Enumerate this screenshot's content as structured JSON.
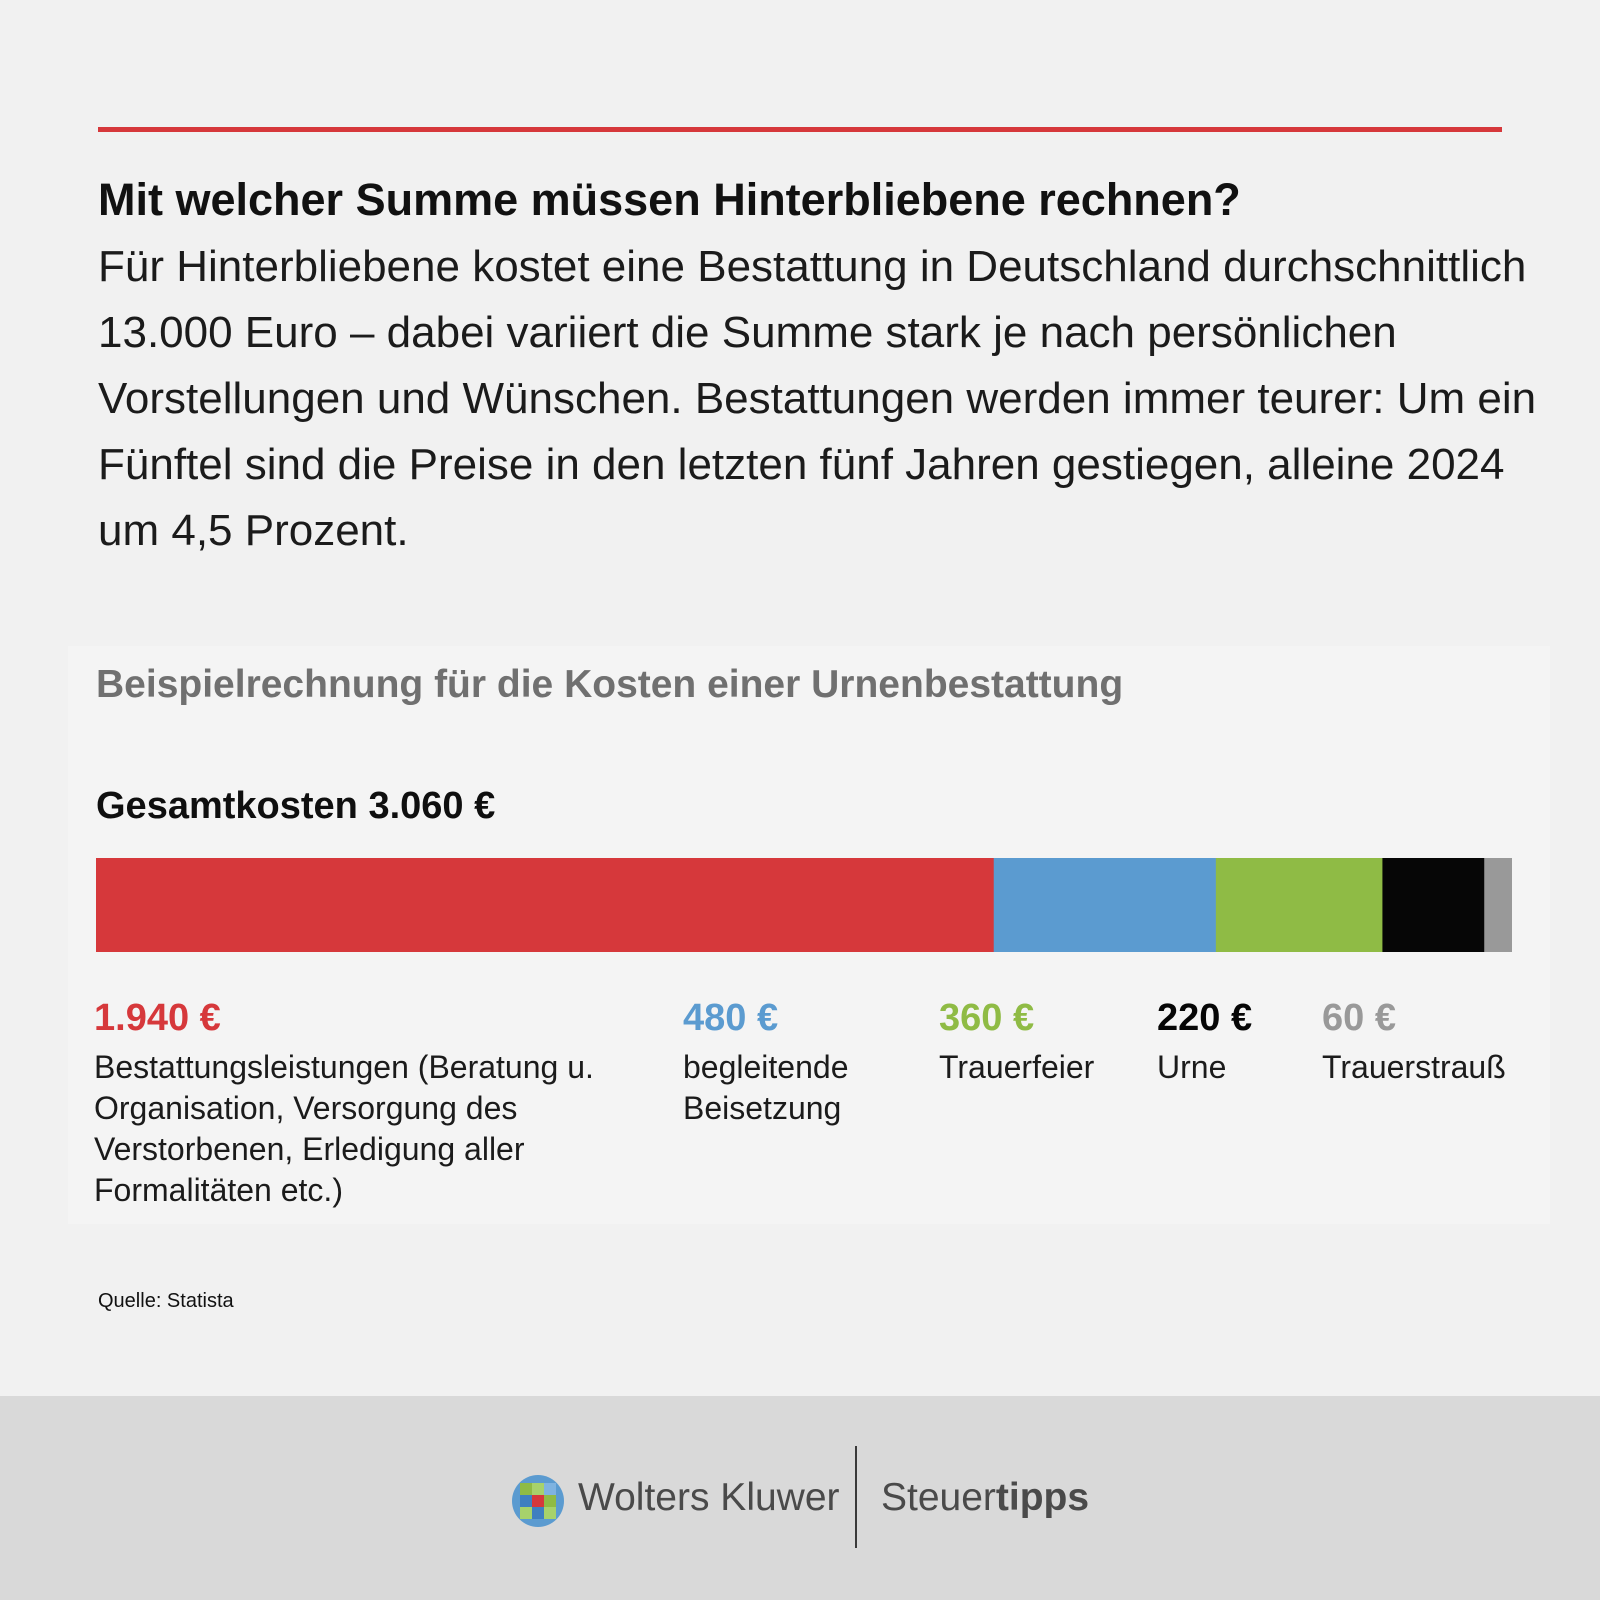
{
  "headline": "Mit welcher Summe müssen Hinterbliebene rechnen?",
  "lead": "Für Hinterbliebene kostet eine Bestattung in Deutschland durchschnittlich 13.000 Euro – dabei variiert die Summe stark je nach persönlichen Vorstellungen und Wünschen. Bestattungen werden immer teurer: Um ein Fünftel sind die Preise in den letzten fünf Jahren gestiegen, alleine 2024 um 4,5 Prozent.",
  "colors": {
    "accent": "#d6383b",
    "blue": "#5b9bd0",
    "green": "#8fbb45",
    "black": "#060606",
    "gray": "#999999",
    "title_gray": "#707070"
  },
  "chart_data": {
    "type": "bar",
    "orientation": "horizontal-stacked",
    "title": "Beispielrechnung für die Kosten einer Urnenbestattung",
    "total_label": "Gesamtkosten 3.060 €",
    "total": 3060,
    "unit": "€",
    "segments": [
      {
        "value": 1940,
        "value_label": "1.940 €",
        "label": "Bestattungsleistungen (Beratung u. Organisation, Versorgung des Verstorbenen, Erledigung aller Formalitäten etc.)",
        "color": "#d6383b"
      },
      {
        "value": 480,
        "value_label": "480 €",
        "label": "begleitende Beisetzung",
        "color": "#5b9bd0"
      },
      {
        "value": 360,
        "value_label": "360 €",
        "label": "Trauerfeier",
        "color": "#8fbb45"
      },
      {
        "value": 220,
        "value_label": "220 €",
        "label": "Urne",
        "color": "#060606"
      },
      {
        "value": 60,
        "value_label": "60 €",
        "label": "Trauerstrauß",
        "color": "#999999"
      }
    ]
  },
  "source": "Quelle: Statista",
  "footer": {
    "brand_left": "Wolters Kluwer",
    "brand_right_regular": "Steuer",
    "brand_right_bold": "tipps"
  }
}
